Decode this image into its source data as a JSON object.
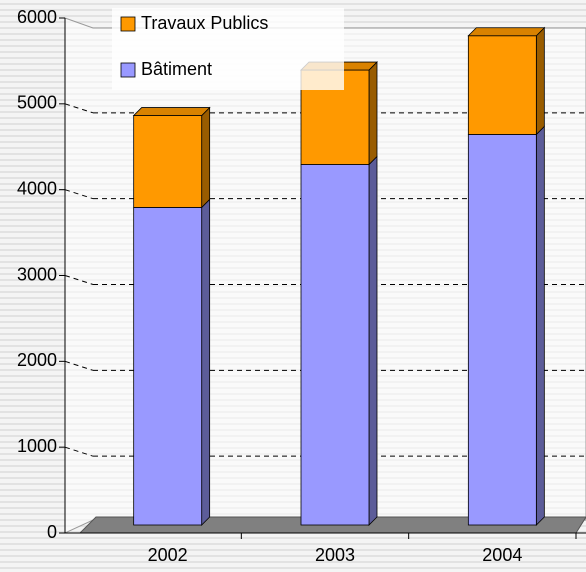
{
  "chart_data": {
    "type": "stacked_bar",
    "categories": [
      "2002",
      "2003",
      "2004"
    ],
    "series": [
      {
        "name": "Bâtiment",
        "color": "#9999ff",
        "values": [
          3700,
          4200,
          4550
        ]
      },
      {
        "name": "Travaux Publics",
        "color": "#ff9900",
        "values": [
          1070,
          1100,
          1150
        ]
      }
    ],
    "ylim": [
      0,
      6000
    ],
    "yticks": [
      0,
      1000,
      2000,
      3000,
      4000,
      5000,
      6000
    ],
    "grid": true
  }
}
